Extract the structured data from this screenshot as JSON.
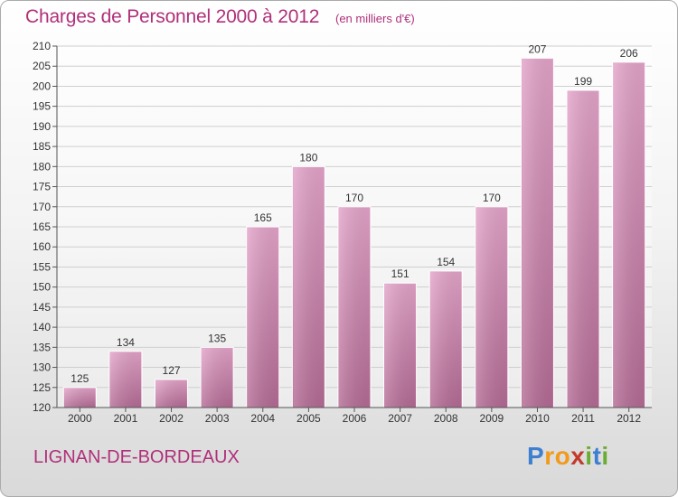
{
  "title": "Charges de Personnel 2000 à 2012",
  "subtitle": "(en milliers d'€)",
  "commune": "LIGNAN-DE-BORDEAUX",
  "logo": {
    "text": "Proxiti",
    "colors": [
      "#3d7fd0",
      "#f19a1b",
      "#f19a1b",
      "#c33a2d",
      "#6aad32",
      "#3d7fd0",
      "#6aad32"
    ]
  },
  "colors": {
    "bar": "#d990bb",
    "bar_dark": "#b96a98",
    "text_accent": "#b0307a"
  },
  "chart_data": {
    "type": "bar",
    "title": "Charges de Personnel 2000 à 2012",
    "xlabel": "",
    "ylabel": "",
    "categories": [
      "2000",
      "2001",
      "2002",
      "2003",
      "2004",
      "2005",
      "2006",
      "2007",
      "2008",
      "2009",
      "2010",
      "2011",
      "2012"
    ],
    "values": [
      125,
      134,
      127,
      135,
      165,
      180,
      170,
      151,
      154,
      170,
      207,
      199,
      206
    ],
    "ylim": [
      120,
      210
    ],
    "yticks": [
      120,
      125,
      130,
      135,
      140,
      145,
      150,
      155,
      160,
      165,
      170,
      175,
      180,
      185,
      190,
      195,
      200,
      205,
      210
    ],
    "grid": true,
    "data_labels": true
  }
}
